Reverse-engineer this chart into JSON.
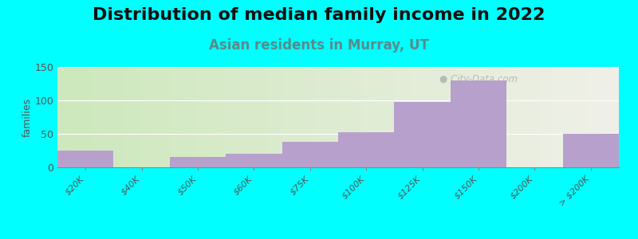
{
  "title": "Distribution of median family income in 2022",
  "subtitle": "Asian residents in Murray, UT",
  "ylabel": "families",
  "categories": [
    "$20K",
    "$40K",
    "$50K",
    "$60K",
    "$75K",
    "$100K",
    "$125K",
    "$150K",
    "$200K",
    "> $200K"
  ],
  "values": [
    25,
    0,
    15,
    20,
    38,
    52,
    98,
    130,
    0,
    50
  ],
  "bar_color": "#b8a0cc",
  "background_color": "#00ffff",
  "plot_bg_gradient_left": "#cde8bc",
  "plot_bg_gradient_right": "#f0f0e8",
  "ylim": [
    0,
    150
  ],
  "yticks": [
    0,
    50,
    100,
    150
  ],
  "title_fontsize": 16,
  "subtitle_fontsize": 12,
  "subtitle_color": "#5a8a8a",
  "ylabel_fontsize": 9,
  "watermark": "  City-Data.com",
  "tick_label_color": "#555555",
  "tick_label_fontsize": 8,
  "bar_edges": [
    -0.5,
    0.5,
    1.5,
    2.5,
    3.5,
    4.5,
    5.5,
    6.5,
    7.5,
    8.5,
    9.5
  ]
}
